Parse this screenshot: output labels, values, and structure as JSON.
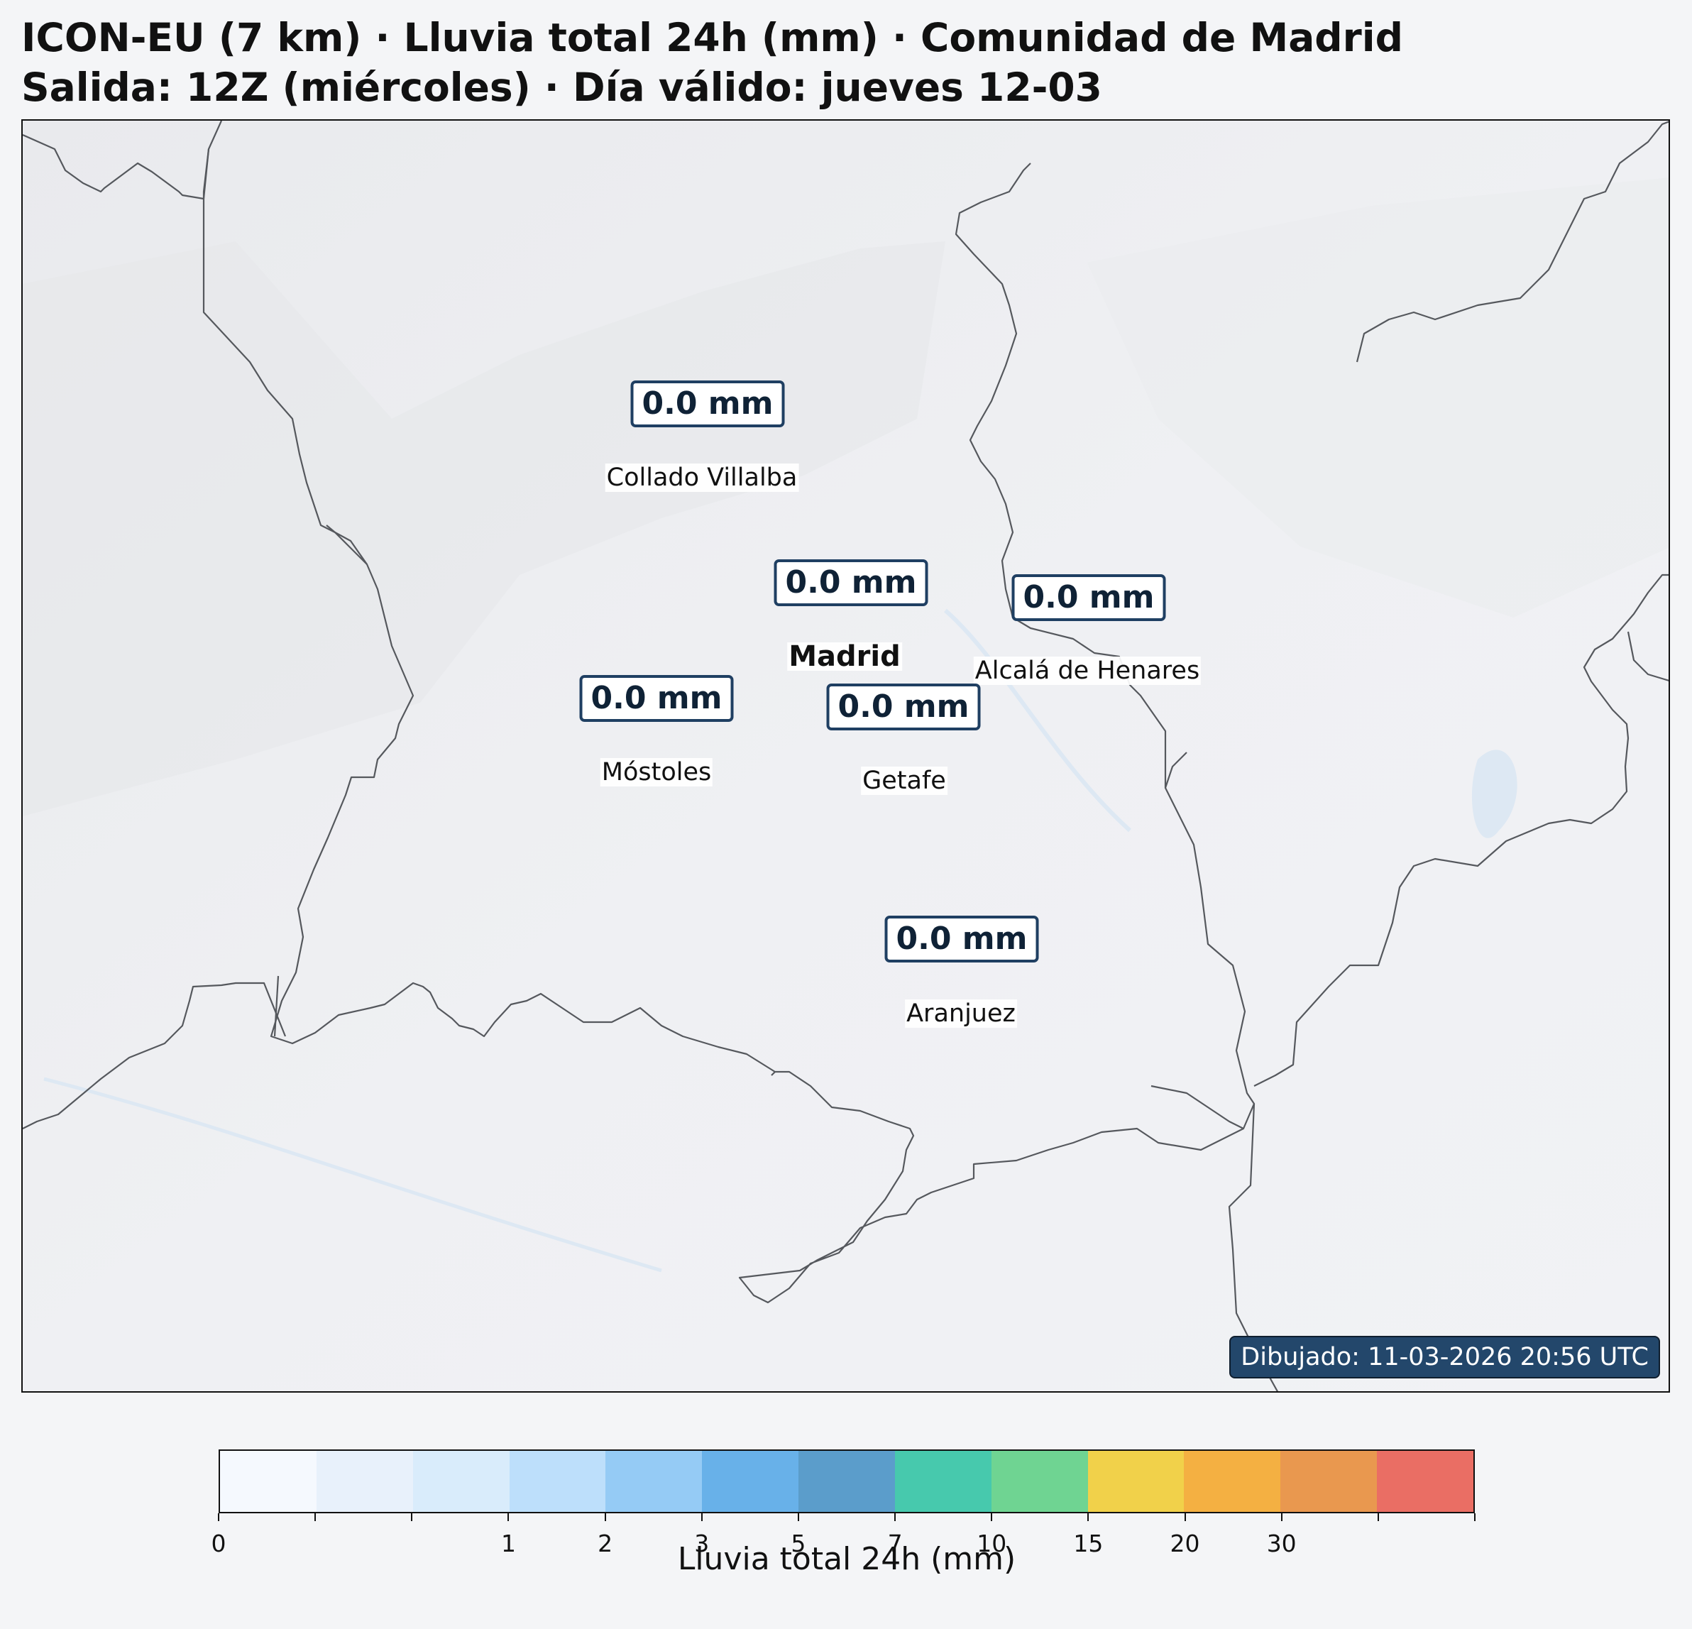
{
  "title": {
    "line1": "ICON-EU (7 km) · Lluvia total 24h (mm) · Comunidad de Madrid",
    "line2": "Salida: 12Z (miércoles) · Día válido: jueves 12-03"
  },
  "map": {
    "precip_labels": [
      {
        "id": "collado-villalba",
        "value": "0.0 mm"
      },
      {
        "id": "madrid",
        "value": "0.0 mm"
      },
      {
        "id": "alcala",
        "value": "0.0 mm"
      },
      {
        "id": "mostoles",
        "value": "0.0 mm"
      },
      {
        "id": "getafe",
        "value": "0.0 mm"
      },
      {
        "id": "aranjuez",
        "value": "0.0 mm"
      }
    ],
    "towns": [
      {
        "id": "collado-villalba",
        "name": "Collado Villalba"
      },
      {
        "id": "madrid",
        "name": "Madrid",
        "capital": true
      },
      {
        "id": "alcala",
        "name": "Alcalá de Henares"
      },
      {
        "id": "mostoles",
        "name": "Móstoles"
      },
      {
        "id": "getafe",
        "name": "Getafe"
      },
      {
        "id": "aranjuez",
        "name": "Aranjuez"
      }
    ],
    "drawn_stamp": "Dibujado: 11-03-2026 20:56 UTC",
    "colors": {
      "terrain": "#eeeff2",
      "border": "#55585d",
      "water": "#dde8f3",
      "label_border": "#1f3f62",
      "stamp_bg": "#23476b"
    }
  },
  "colorbar": {
    "label": "Lluvia total 24h (mm)",
    "colors": [
      "#f5f9fe",
      "#e8f1fb",
      "#d9ecfb",
      "#bddffb",
      "#95cbf5",
      "#68b1e9",
      "#5b9dcb",
      "#47c9ad",
      "#6fd492",
      "#f1d14a",
      "#f4b042",
      "#e9984f",
      "#ea6e64"
    ],
    "tick_labels": [
      "0",
      "",
      "",
      "1",
      "2",
      "3",
      "5",
      "7",
      "10",
      "15",
      "20",
      "30",
      "",
      ""
    ]
  }
}
